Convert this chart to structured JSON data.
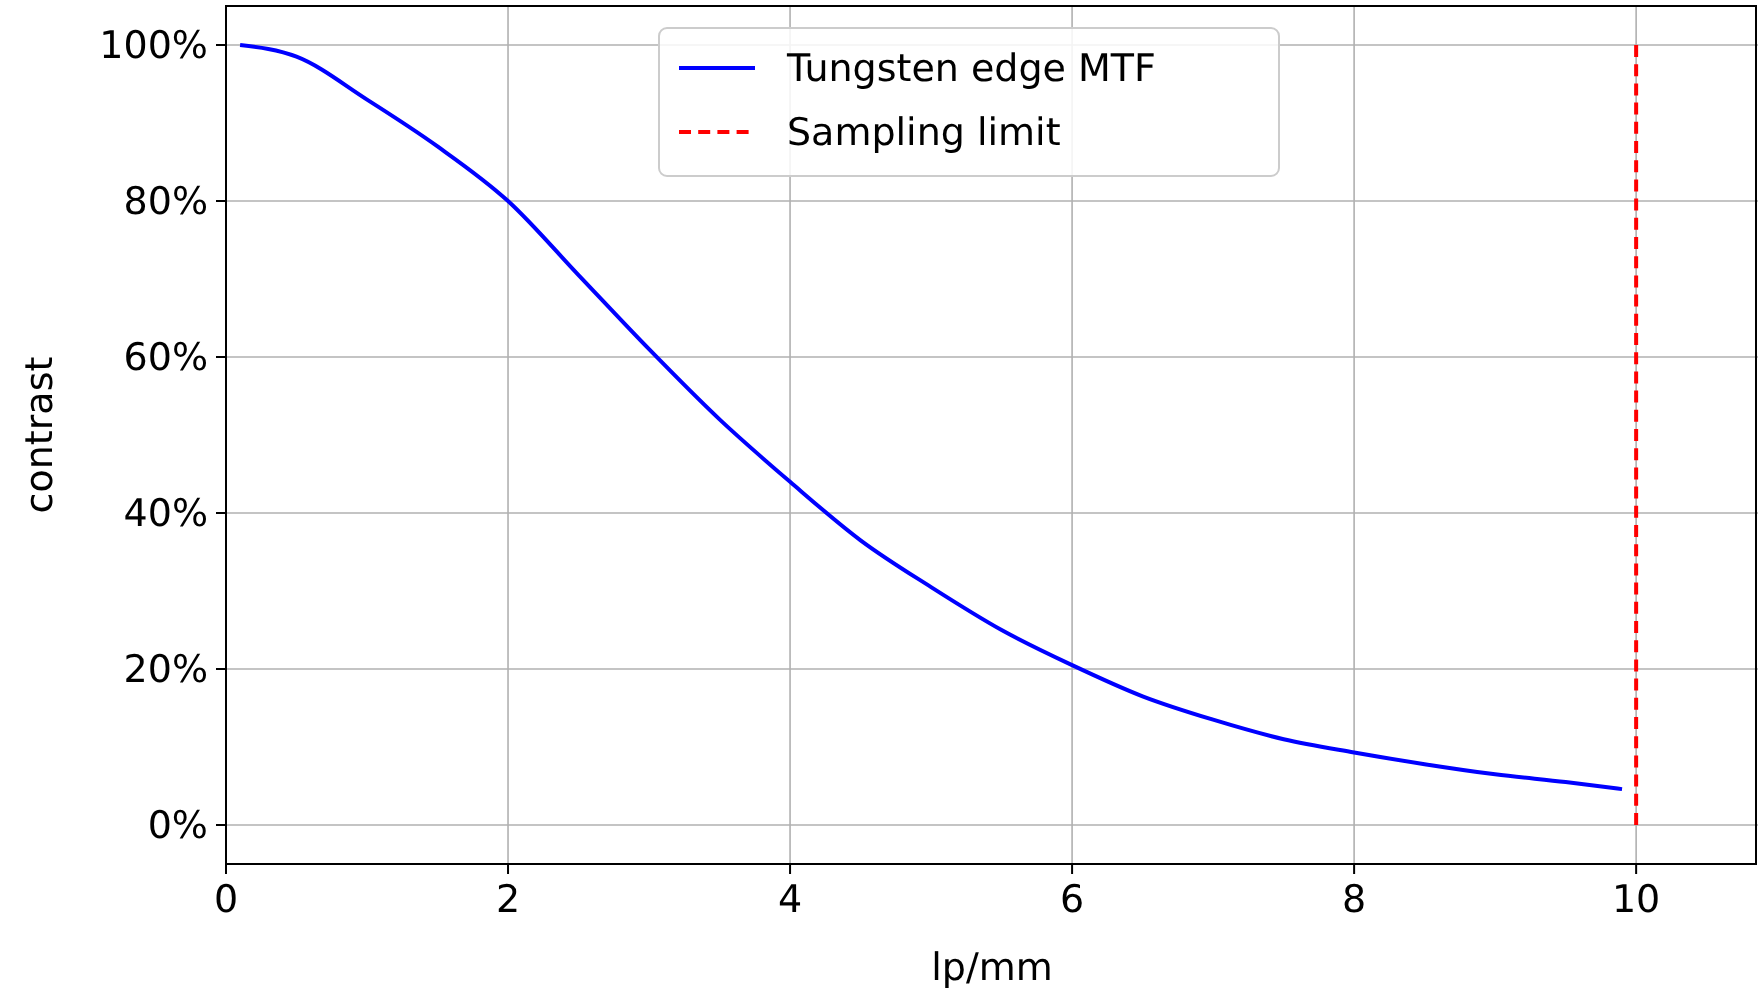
{
  "chart_data": {
    "type": "line",
    "xlabel": "lp/mm",
    "ylabel": "contrast",
    "xlim": [
      0,
      10.85
    ],
    "ylim": [
      -5,
      105
    ],
    "xticks": [
      0,
      2,
      4,
      6,
      8,
      10
    ],
    "yticks": [
      {
        "value": 0,
        "label": "0%"
      },
      {
        "value": 20,
        "label": "20%"
      },
      {
        "value": 40,
        "label": "40%"
      },
      {
        "value": 60,
        "label": "60%"
      },
      {
        "value": 80,
        "label": "80%"
      },
      {
        "value": 100,
        "label": "100%"
      }
    ],
    "grid": true,
    "legend": "top",
    "series": [
      {
        "name": "Tungsten edge MTF",
        "color": "#0000ff",
        "line_style": "solid",
        "x": [
          0.1,
          0.5,
          1,
          1.5,
          2,
          2.5,
          3,
          3.5,
          4,
          4.5,
          5,
          5.5,
          6,
          6.5,
          7,
          7.5,
          8,
          8.5,
          9,
          9.5,
          9.9
        ],
        "values": [
          100,
          98.5,
          93,
          87,
          80,
          70.5,
          61,
          52,
          44,
          36.5,
          30.5,
          25,
          20.5,
          16.5,
          13.5,
          11,
          9.3,
          7.8,
          6.5,
          5.5,
          4.6
        ]
      },
      {
        "name": "Sampling limit",
        "color": "#ff0000",
        "line_style": "dashed",
        "x": [
          10,
          10
        ],
        "values": [
          0,
          100
        ]
      }
    ]
  }
}
